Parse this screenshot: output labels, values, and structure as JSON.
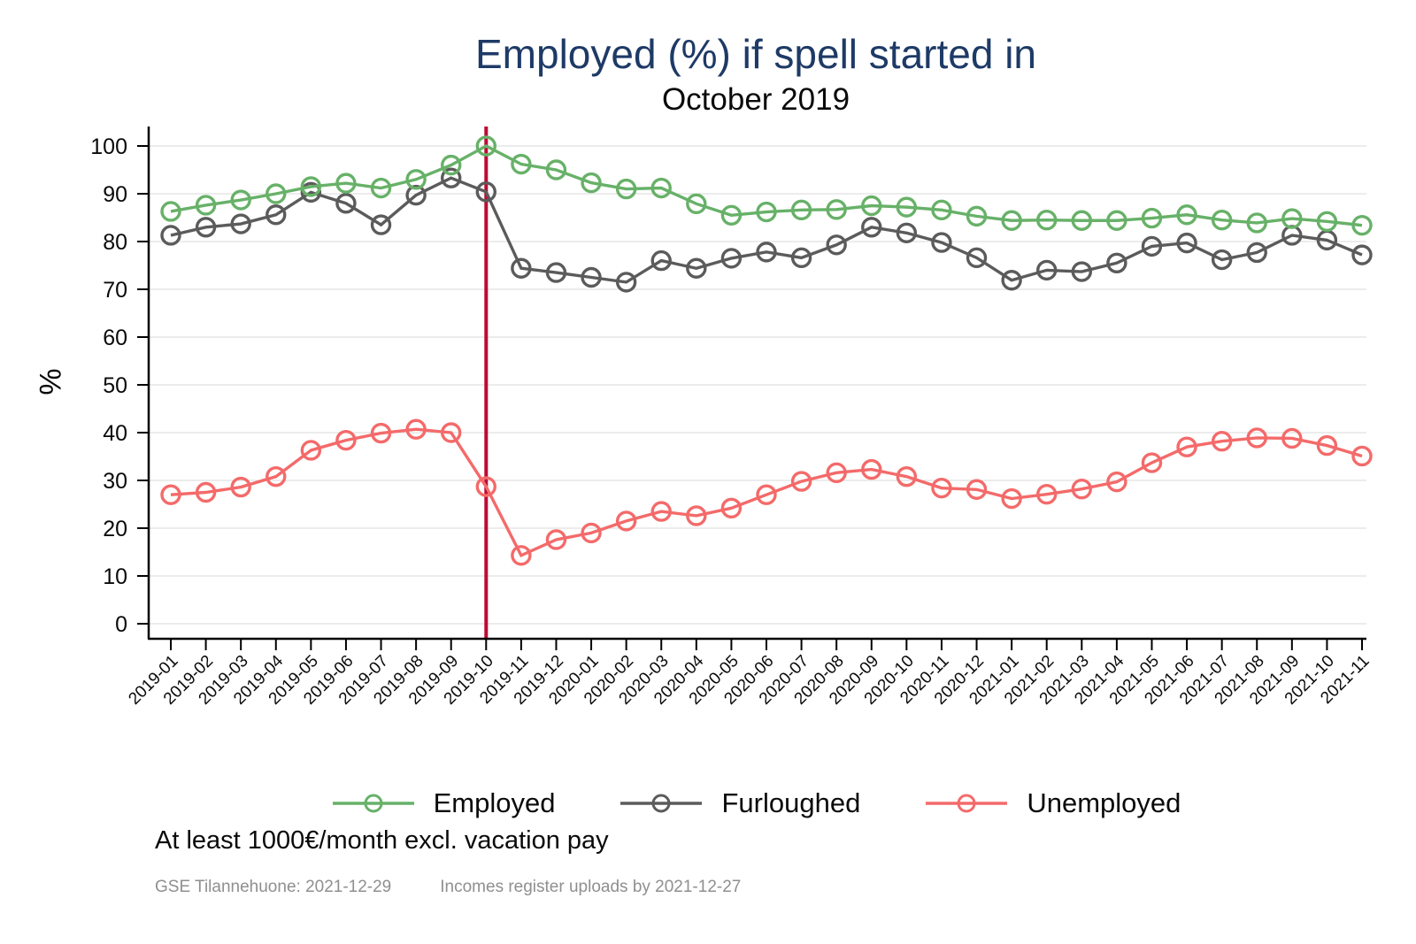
{
  "header": {
    "title": "Employed (%) if spell started in",
    "subtitle": "October 2019"
  },
  "notes": {
    "line1": "At least 1000€/month excl. vacation pay",
    "caption_left": "GSE Tilannehuone: 2021-12-29",
    "caption_right": "Incomes register uploads by 2021-12-27"
  },
  "style": {
    "title_color": "#1e3a66",
    "grid_color": "#d9d9d9",
    "axis_color": "#000000",
    "caption_color": "#8f8f8f",
    "vline_color": "#bb0b34",
    "background": "#ffffff"
  },
  "chart_data": {
    "type": "line",
    "title": "Employed (%) if spell started in",
    "subtitle": "October 2019",
    "xlabel": "",
    "ylabel": "%",
    "ylim": [
      0,
      100
    ],
    "yticks": [
      0,
      10,
      20,
      30,
      40,
      50,
      60,
      70,
      80,
      90,
      100
    ],
    "grid": true,
    "legend_position": "bottom",
    "vline": {
      "x": "2019-10",
      "color": "#bb0b34"
    },
    "marker": "open-circle",
    "categories": [
      "2019-01",
      "2019-02",
      "2019-03",
      "2019-04",
      "2019-05",
      "2019-06",
      "2019-07",
      "2019-08",
      "2019-09",
      "2019-10",
      "2019-11",
      "2019-12",
      "2020-01",
      "2020-02",
      "2020-03",
      "2020-04",
      "2020-05",
      "2020-06",
      "2020-07",
      "2020-08",
      "2020-09",
      "2020-10",
      "2020-11",
      "2020-12",
      "2021-01",
      "2021-02",
      "2021-03",
      "2021-04",
      "2021-05",
      "2021-06",
      "2021-07",
      "2021-08",
      "2021-09",
      "2021-10",
      "2021-11"
    ],
    "series": [
      {
        "name": "Employed",
        "color": "#67b168",
        "values": [
          86.3,
          87.6,
          88.7,
          90.0,
          91.5,
          92.2,
          91.2,
          93.0,
          96.0,
          100,
          96.2,
          95.0,
          92.3,
          91.0,
          91.2,
          87.9,
          85.5,
          86.2,
          86.6,
          86.7,
          87.5,
          87.2,
          86.6,
          85.3,
          84.4,
          84.5,
          84.4,
          84.4,
          84.9,
          85.6,
          84.5,
          83.9,
          84.8,
          84.2,
          83.4
        ]
      },
      {
        "name": "Furloughed",
        "color": "#5b5b5b",
        "values": [
          81.3,
          83.0,
          83.7,
          85.6,
          90.3,
          88.0,
          83.5,
          89.7,
          93.3,
          90.4,
          74.4,
          73.5,
          72.5,
          71.5,
          76.0,
          74.4,
          76.5,
          77.8,
          76.6,
          79.3,
          83.0,
          81.8,
          79.8,
          76.6,
          71.9,
          74.0,
          73.7,
          75.5,
          79.0,
          79.7,
          76.2,
          77.7,
          81.3,
          80.3,
          77.2
        ]
      },
      {
        "name": "Unemployed",
        "color": "#f46a6a",
        "values": [
          27.0,
          27.5,
          28.6,
          30.8,
          36.3,
          38.4,
          39.9,
          40.7,
          40.0,
          28.7,
          14.3,
          17.6,
          19.0,
          21.5,
          23.5,
          22.6,
          24.2,
          27.0,
          29.8,
          31.6,
          32.3,
          30.8,
          28.4,
          28.1,
          26.2,
          27.1,
          28.2,
          29.7,
          33.7,
          37.0,
          38.2,
          38.9,
          38.8,
          37.3,
          35.1
        ]
      }
    ]
  }
}
